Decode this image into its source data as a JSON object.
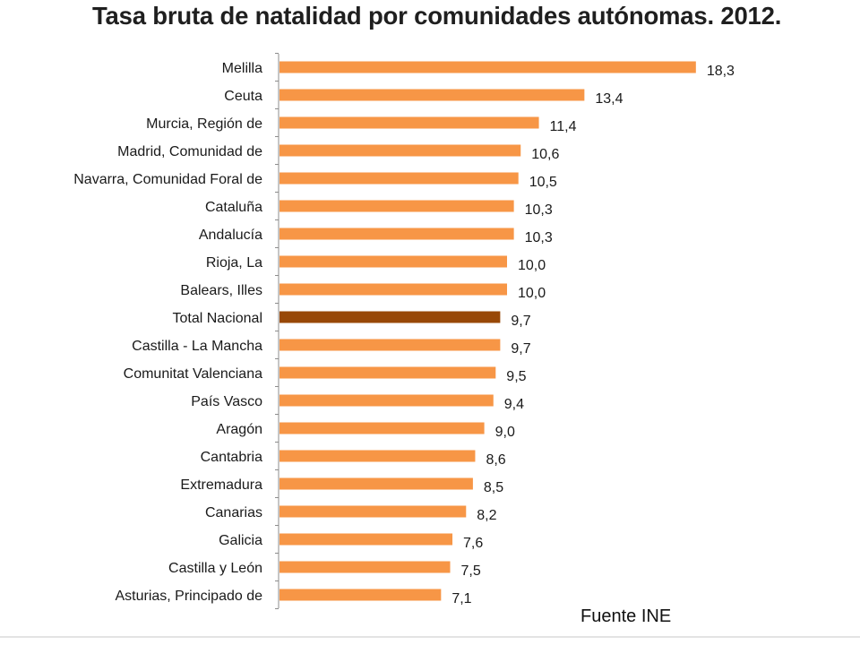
{
  "colors": {
    "bar": "#f79646",
    "bar_highlight": "#984807",
    "axis": "#8c8c8c"
  },
  "chart_data": {
    "type": "bar",
    "orientation": "horizontal",
    "title": "Tasa bruta de natalidad por comunidades autónomas. 2012.",
    "source": "Fuente INE",
    "decimal_separator": ",",
    "highlight": "Total Nacional",
    "xlim": [
      0,
      20
    ],
    "categories": [
      "Melilla",
      "Ceuta",
      "Murcia, Región de",
      "Madrid, Comunidad de",
      "Navarra, Comunidad Foral de",
      "Cataluña",
      "Andalucía",
      "Rioja, La",
      "Balears, Illes",
      "Total Nacional",
      "Castilla - La Mancha",
      "Comunitat Valenciana",
      "País Vasco",
      "Aragón",
      "Cantabria",
      "Extremadura",
      "Canarias",
      "Galicia",
      "Castilla y León",
      "Asturias, Principado de"
    ],
    "values": [
      18.3,
      13.4,
      11.4,
      10.6,
      10.5,
      10.3,
      10.3,
      10.0,
      10.0,
      9.7,
      9.7,
      9.5,
      9.4,
      9.0,
      8.6,
      8.5,
      8.2,
      7.6,
      7.5,
      7.1
    ],
    "value_labels": [
      "18,3",
      "13,4",
      "11,4",
      "10,6",
      "10,5",
      "10,3",
      "10,3",
      "10,0",
      "10,0",
      "9,7",
      "9,7",
      "9,5",
      "9,4",
      "9,0",
      "8,6",
      "8,5",
      "8,2",
      "7,6",
      "7,5",
      "7,1"
    ]
  }
}
